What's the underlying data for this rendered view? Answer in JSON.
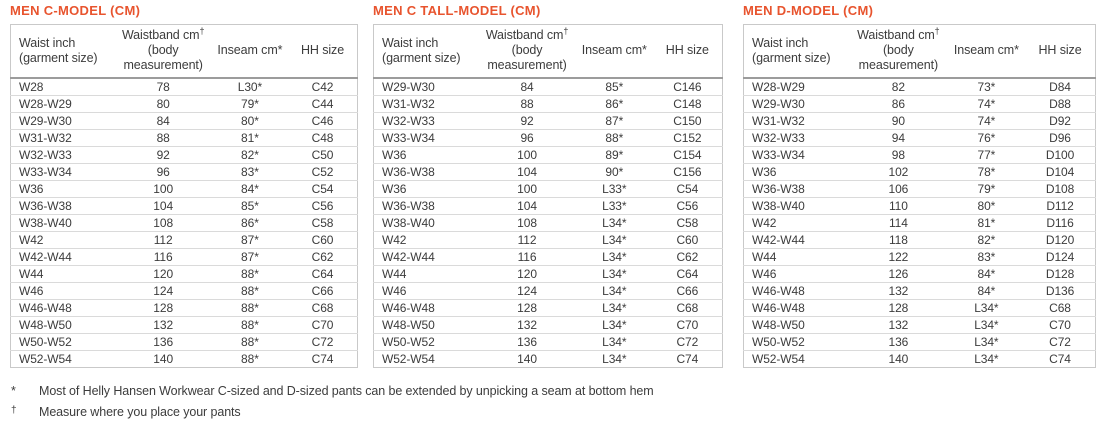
{
  "colors": {
    "accent_orange": "#E8542E",
    "text": "#3C3C3C",
    "row_border": "#DADADA",
    "outer_border": "#C9C9C9",
    "header_separator": "#9C9C9C"
  },
  "columns": {
    "waist_line1": "Waist inch",
    "waist_line2": "(garment size)",
    "waistband_line1": "Waistband cm",
    "waistband_sup": "†",
    "waistband_line2": "(body measurement)",
    "inseam": "Inseam cm*",
    "hh": "HH size"
  },
  "tables": [
    {
      "title": "MEN C-MODEL (CM)",
      "rows": [
        [
          "W28",
          "78",
          "L30*",
          "C42"
        ],
        [
          "W28-W29",
          "80",
          "79*",
          "C44"
        ],
        [
          "W29-W30",
          "84",
          "80*",
          "C46"
        ],
        [
          "W31-W32",
          "88",
          "81*",
          "C48"
        ],
        [
          "W32-W33",
          "92",
          "82*",
          "C50"
        ],
        [
          "W33-W34",
          "96",
          "83*",
          "C52"
        ],
        [
          "W36",
          "100",
          "84*",
          "C54"
        ],
        [
          "W36-W38",
          "104",
          "85*",
          "C56"
        ],
        [
          "W38-W40",
          "108",
          "86*",
          "C58"
        ],
        [
          "W42",
          "112",
          "87*",
          "C60"
        ],
        [
          "W42-W44",
          "116",
          "87*",
          "C62"
        ],
        [
          "W44",
          "120",
          "88*",
          "C64"
        ],
        [
          "W46",
          "124",
          "88*",
          "C66"
        ],
        [
          "W46-W48",
          "128",
          "88*",
          "C68"
        ],
        [
          "W48-W50",
          "132",
          "88*",
          "C70"
        ],
        [
          "W50-W52",
          "136",
          "88*",
          "C72"
        ],
        [
          "W52-W54",
          "140",
          "88*",
          "C74"
        ]
      ]
    },
    {
      "title": "MEN C TALL-MODEL (CM)",
      "rows": [
        [
          "W29-W30",
          "84",
          "85*",
          "C146"
        ],
        [
          "W31-W32",
          "88",
          "86*",
          "C148"
        ],
        [
          "W32-W33",
          "92",
          "87*",
          "C150"
        ],
        [
          "W33-W34",
          "96",
          "88*",
          "C152"
        ],
        [
          "W36",
          "100",
          "89*",
          "C154"
        ],
        [
          "W36-W38",
          "104",
          "90*",
          "C156"
        ],
        [
          "W36",
          "100",
          "L33*",
          "C54"
        ],
        [
          "W36-W38",
          "104",
          "L33*",
          "C56"
        ],
        [
          "W38-W40",
          "108",
          "L34*",
          "C58"
        ],
        [
          "W42",
          "112",
          "L34*",
          "C60"
        ],
        [
          "W42-W44",
          "116",
          "L34*",
          "C62"
        ],
        [
          "W44",
          "120",
          "L34*",
          "C64"
        ],
        [
          "W46",
          "124",
          "L34*",
          "C66"
        ],
        [
          "W46-W48",
          "128",
          "L34*",
          "C68"
        ],
        [
          "W48-W50",
          "132",
          "L34*",
          "C70"
        ],
        [
          "W50-W52",
          "136",
          "L34*",
          "C72"
        ],
        [
          "W52-W54",
          "140",
          "L34*",
          "C74"
        ]
      ]
    },
    {
      "title": "MEN D-MODEL (CM)",
      "rows": [
        [
          "W28-W29",
          "82",
          "73*",
          "D84"
        ],
        [
          "W29-W30",
          "86",
          "74*",
          "D88"
        ],
        [
          "W31-W32",
          "90",
          "74*",
          "D92"
        ],
        [
          "W32-W33",
          "94",
          "76*",
          "D96"
        ],
        [
          "W33-W34",
          "98",
          "77*",
          "D100"
        ],
        [
          "W36",
          "102",
          "78*",
          "D104"
        ],
        [
          "W36-W38",
          "106",
          "79*",
          "D108"
        ],
        [
          "W38-W40",
          "110",
          "80*",
          "D112"
        ],
        [
          "W42",
          "114",
          "81*",
          "D116"
        ],
        [
          "W42-W44",
          "118",
          "82*",
          "D120"
        ],
        [
          "W44",
          "122",
          "83*",
          "D124"
        ],
        [
          "W46",
          "126",
          "84*",
          "D128"
        ],
        [
          "W46-W48",
          "132",
          "84*",
          "D136"
        ],
        [
          "W46-W48",
          "128",
          "L34*",
          "C68"
        ],
        [
          "W48-W50",
          "132",
          "L34*",
          "C70"
        ],
        [
          "W50-W52",
          "136",
          "L34*",
          "C72"
        ],
        [
          "W52-W54",
          "140",
          "L34*",
          "C74"
        ]
      ]
    }
  ],
  "footnotes": [
    {
      "symbol": "*",
      "text": "Most of Helly Hansen Workwear C-sized and D-sized pants can be extended by unpicking a  seam at bottom hem"
    },
    {
      "symbol": "†",
      "text": "Measure where you place your pants"
    }
  ]
}
